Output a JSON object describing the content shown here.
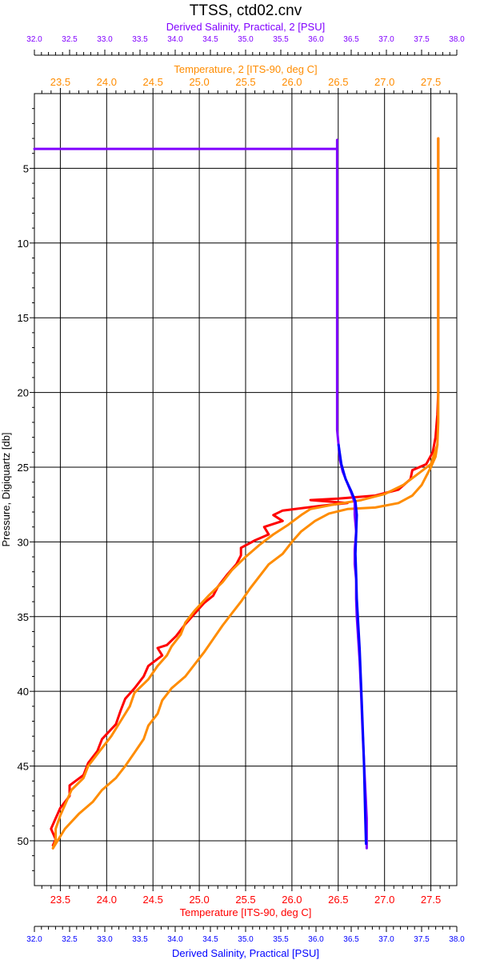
{
  "chart_data": {
    "type": "line",
    "title": "TTSS, ctd02.cnv",
    "ylabel": "Pressure, Digiquartz [db]",
    "ylim": [
      0,
      53
    ],
    "y_inverted": true,
    "y_ticks": [
      5,
      10,
      15,
      20,
      25,
      30,
      35,
      40,
      45,
      50
    ],
    "grid": true,
    "axes": {
      "temp_bottom": {
        "label": "Temperature [ITS-90, deg C]",
        "color": "#ff0000",
        "range": [
          23.22,
          27.78
        ],
        "ticks": [
          "23.5",
          "24.0",
          "24.5",
          "25.0",
          "25.5",
          "26.0",
          "26.5",
          "27.0",
          "27.5"
        ]
      },
      "temp_top": {
        "label": "Temperature, 2 [ITS-90, deg C]",
        "color": "#ff8c00",
        "range": [
          23.22,
          27.78
        ],
        "ticks": [
          "23.5",
          "24.0",
          "24.5",
          "25.0",
          "25.5",
          "26.0",
          "26.5",
          "27.0",
          "27.5"
        ]
      },
      "sal_top": {
        "label": "Derived Salinity, Practical, 2 [PSU]",
        "color": "#8000ff",
        "range": [
          32.0,
          38.0
        ],
        "ticks": [
          "32.0",
          "32.5",
          "33.0",
          "33.5",
          "34.0",
          "34.5",
          "35.0",
          "35.5",
          "36.0",
          "36.5",
          "37.0",
          "37.5",
          "38.0"
        ]
      },
      "sal_bottom": {
        "label": "Derived Salinity, Practical [PSU]",
        "color": "#0000ff",
        "range": [
          32.0,
          38.0
        ],
        "ticks": [
          "32.0",
          "32.5",
          "33.0",
          "33.5",
          "34.0",
          "34.5",
          "35.0",
          "35.5",
          "36.0",
          "36.5",
          "37.0",
          "37.5",
          "38.0"
        ]
      }
    },
    "series": [
      {
        "axis": "temp_bottom",
        "color": "#ff0000",
        "points": [
          [
            27.58,
            3.0
          ],
          [
            27.58,
            10.0
          ],
          [
            27.58,
            20.0
          ],
          [
            27.57,
            21.5
          ],
          [
            27.55,
            23.0
          ],
          [
            27.52,
            24.0
          ],
          [
            27.45,
            24.8
          ],
          [
            27.3,
            25.2
          ],
          [
            27.28,
            25.8
          ],
          [
            27.15,
            26.5
          ],
          [
            26.9,
            26.9
          ],
          [
            26.5,
            27.1
          ],
          [
            26.2,
            27.2
          ],
          [
            26.6,
            27.4
          ],
          [
            26.3,
            27.6
          ],
          [
            25.9,
            27.9
          ],
          [
            25.8,
            28.2
          ],
          [
            25.9,
            28.6
          ],
          [
            25.7,
            29.0
          ],
          [
            25.75,
            29.5
          ],
          [
            25.6,
            29.9
          ],
          [
            25.45,
            30.4
          ],
          [
            25.45,
            30.9
          ],
          [
            25.4,
            31.5
          ],
          [
            25.3,
            32.2
          ],
          [
            25.2,
            33.0
          ],
          [
            25.15,
            33.6
          ],
          [
            25.05,
            34.1
          ],
          [
            24.95,
            34.8
          ],
          [
            24.85,
            35.5
          ],
          [
            24.75,
            36.3
          ],
          [
            24.65,
            36.9
          ],
          [
            24.55,
            37.1
          ],
          [
            24.6,
            37.6
          ],
          [
            24.45,
            38.3
          ],
          [
            24.4,
            39.0
          ],
          [
            24.3,
            39.8
          ],
          [
            24.2,
            40.5
          ],
          [
            24.15,
            41.3
          ],
          [
            24.1,
            42.2
          ],
          [
            23.95,
            43.2
          ],
          [
            23.9,
            44.0
          ],
          [
            23.8,
            44.8
          ],
          [
            23.75,
            45.6
          ],
          [
            23.6,
            46.3
          ],
          [
            23.6,
            47.0
          ],
          [
            23.5,
            47.8
          ],
          [
            23.45,
            48.5
          ],
          [
            23.4,
            49.2
          ],
          [
            23.45,
            49.9
          ],
          [
            23.42,
            50.3
          ]
        ]
      },
      {
        "axis": "temp_top",
        "color": "#ff8c00",
        "points": [
          [
            27.58,
            3.0
          ],
          [
            27.58,
            8.0
          ],
          [
            27.58,
            16.0
          ],
          [
            27.58,
            22.0
          ],
          [
            27.57,
            23.5
          ],
          [
            27.5,
            24.8
          ],
          [
            27.35,
            25.5
          ],
          [
            27.2,
            26.2
          ],
          [
            27.0,
            26.8
          ],
          [
            26.75,
            27.2
          ],
          [
            26.45,
            27.5
          ],
          [
            26.2,
            27.8
          ],
          [
            26.1,
            28.2
          ],
          [
            25.95,
            28.9
          ],
          [
            25.8,
            29.5
          ],
          [
            25.65,
            30.2
          ],
          [
            25.5,
            31.0
          ],
          [
            25.35,
            31.9
          ],
          [
            25.25,
            32.7
          ],
          [
            25.1,
            33.6
          ],
          [
            24.95,
            34.6
          ],
          [
            24.85,
            35.4
          ],
          [
            24.8,
            36.2
          ],
          [
            24.7,
            37.0
          ],
          [
            24.65,
            37.6
          ],
          [
            24.55,
            38.3
          ],
          [
            24.45,
            39.2
          ],
          [
            24.3,
            40.1
          ],
          [
            24.25,
            41.0
          ],
          [
            24.15,
            42.0
          ],
          [
            24.05,
            43.0
          ],
          [
            23.9,
            44.2
          ],
          [
            23.8,
            45.0
          ],
          [
            23.75,
            45.8
          ],
          [
            23.62,
            46.6
          ],
          [
            23.55,
            47.6
          ],
          [
            23.5,
            48.3
          ],
          [
            23.45,
            49.2
          ],
          [
            23.45,
            50.0
          ],
          [
            23.42,
            50.5
          ]
        ]
      },
      {
        "axis": "temp_top",
        "color": "#ff8c00",
        "points": [
          [
            23.42,
            50.5
          ],
          [
            23.55,
            49.2
          ],
          [
            23.7,
            48.2
          ],
          [
            23.85,
            47.4
          ],
          [
            23.95,
            46.6
          ],
          [
            24.1,
            45.8
          ],
          [
            24.2,
            45.0
          ],
          [
            24.3,
            44.1
          ],
          [
            24.4,
            43.2
          ],
          [
            24.45,
            42.3
          ],
          [
            24.55,
            41.5
          ],
          [
            24.6,
            40.6
          ],
          [
            24.7,
            39.8
          ],
          [
            24.85,
            39.0
          ],
          [
            24.95,
            38.2
          ],
          [
            25.05,
            37.4
          ],
          [
            25.15,
            36.5
          ],
          [
            25.25,
            35.6
          ],
          [
            25.35,
            34.8
          ],
          [
            25.45,
            34.0
          ],
          [
            25.55,
            33.1
          ],
          [
            25.65,
            32.3
          ],
          [
            25.75,
            31.5
          ],
          [
            25.9,
            30.8
          ],
          [
            26.0,
            30.0
          ],
          [
            26.1,
            29.3
          ],
          [
            26.25,
            28.6
          ],
          [
            26.4,
            28.1
          ],
          [
            26.6,
            27.8
          ],
          [
            26.9,
            27.7
          ],
          [
            27.15,
            27.4
          ],
          [
            27.3,
            26.9
          ],
          [
            27.4,
            26.2
          ],
          [
            27.45,
            25.6
          ],
          [
            27.5,
            25.0
          ],
          [
            27.55,
            24.3
          ],
          [
            27.57,
            23.5
          ]
        ]
      },
      {
        "axis": "sal_top",
        "color": "#8000ff",
        "points": [
          [
            32.0,
            3.7
          ],
          [
            36.3,
            3.7
          ],
          [
            36.3,
            3.1
          ],
          [
            36.3,
            10.0
          ],
          [
            36.3,
            20.0
          ],
          [
            36.3,
            22.5
          ],
          [
            36.32,
            23.5
          ],
          [
            36.34,
            24.5
          ],
          [
            36.38,
            25.3
          ],
          [
            36.44,
            26.0
          ],
          [
            36.5,
            26.7
          ],
          [
            36.55,
            27.4
          ],
          [
            36.55,
            28.2
          ],
          [
            36.57,
            29.3
          ],
          [
            36.55,
            30.5
          ],
          [
            36.55,
            31.5
          ],
          [
            36.57,
            32.5
          ],
          [
            36.57,
            33.8
          ],
          [
            36.58,
            35.0
          ],
          [
            36.6,
            36.5
          ],
          [
            36.62,
            38.0
          ],
          [
            36.64,
            40.0
          ],
          [
            36.66,
            42.5
          ],
          [
            36.68,
            44.5
          ],
          [
            36.7,
            46.5
          ],
          [
            36.72,
            48.5
          ],
          [
            36.72,
            50.5
          ]
        ]
      },
      {
        "axis": "sal_bottom",
        "color": "#0000ff",
        "points": [
          [
            36.32,
            23.5
          ],
          [
            36.36,
            24.8
          ],
          [
            36.42,
            25.8
          ],
          [
            36.5,
            26.6
          ],
          [
            36.56,
            27.3
          ],
          [
            36.58,
            28.2
          ],
          [
            36.57,
            29.5
          ],
          [
            36.56,
            30.8
          ],
          [
            36.57,
            32.2
          ],
          [
            36.58,
            33.8
          ],
          [
            36.6,
            35.5
          ],
          [
            36.62,
            37.2
          ],
          [
            36.64,
            39.5
          ],
          [
            36.66,
            42.0
          ],
          [
            36.68,
            44.5
          ],
          [
            36.69,
            46.5
          ],
          [
            36.7,
            48.5
          ],
          [
            36.71,
            50.2
          ]
        ]
      }
    ]
  }
}
